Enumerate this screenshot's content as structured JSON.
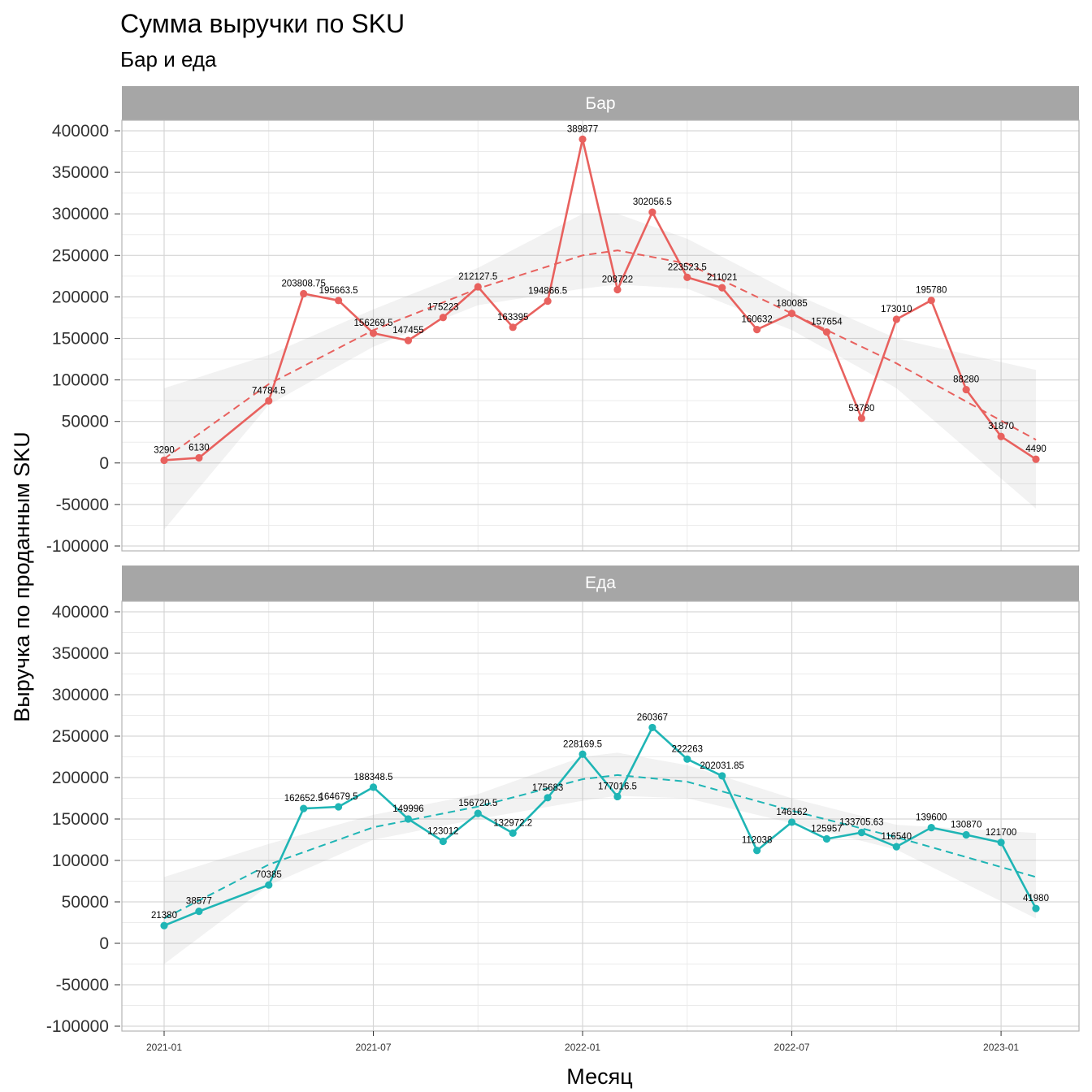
{
  "chart_data": {
    "type": "line",
    "title": "Сумма выручки по SKU",
    "subtitle": "Бар и еда",
    "xlabel": "Месяц",
    "ylabel": "Выручка по проданным SKU",
    "ylim": [
      -100000,
      400000
    ],
    "yticks": [
      -100000,
      -50000,
      0,
      50000,
      100000,
      150000,
      200000,
      250000,
      300000,
      350000,
      400000
    ],
    "xticks": [
      "2021-01",
      "2021-07",
      "2022-01",
      "2022-07",
      "2023-01"
    ],
    "grid": true,
    "legend": "none",
    "facets": [
      {
        "name": "Бар",
        "color": "#E8615E",
        "points": [
          {
            "x": "2021-01",
            "y": 3290,
            "label": "3290"
          },
          {
            "x": "2021-02",
            "y": 6130,
            "label": "6130"
          },
          {
            "x": "2021-04",
            "y": 74784.5,
            "label": "74784.5"
          },
          {
            "x": "2021-05",
            "y": 203808.75,
            "label": "203808.75"
          },
          {
            "x": "2021-06",
            "y": 195663.5,
            "label": "195663.5"
          },
          {
            "x": "2021-07",
            "y": 156269.5,
            "label": "156269.5"
          },
          {
            "x": "2021-08",
            "y": 147455,
            "label": "147455"
          },
          {
            "x": "2021-09",
            "y": 175223,
            "label": "175223"
          },
          {
            "x": "2021-10",
            "y": 212127.5,
            "label": "212127.5"
          },
          {
            "x": "2021-11",
            "y": 163395,
            "label": "163395"
          },
          {
            "x": "2021-12",
            "y": 194866.5,
            "label": "194866.5"
          },
          {
            "x": "2022-01",
            "y": 389877,
            "label": "389877"
          },
          {
            "x": "2022-02",
            "y": 208722,
            "label": "208722"
          },
          {
            "x": "2022-03",
            "y": 302056.5,
            "label": "302056.5"
          },
          {
            "x": "2022-04",
            "y": 223523.5,
            "label": "223523.5"
          },
          {
            "x": "2022-05",
            "y": 211021,
            "label": "211021"
          },
          {
            "x": "2022-06",
            "y": 160632,
            "label": "160632"
          },
          {
            "x": "2022-07",
            "y": 180085,
            "label": "180085"
          },
          {
            "x": "2022-08",
            "y": 157654,
            "label": "157654"
          },
          {
            "x": "2022-09",
            "y": 53780,
            "label": "53780"
          },
          {
            "x": "2022-10",
            "y": 173010,
            "label": "173010"
          },
          {
            "x": "2022-11",
            "y": 195780,
            "label": "195780"
          },
          {
            "x": "2022-12",
            "y": 88280,
            "label": "88280"
          },
          {
            "x": "2023-01",
            "y": 31870,
            "label": "31870"
          },
          {
            "x": "2023-02",
            "y": 4490,
            "label": "4490"
          }
        ],
        "trend": [
          {
            "x": "2021-01",
            "y": 5000,
            "lower": -80000,
            "upper": 90000
          },
          {
            "x": "2021-04",
            "y": 95000,
            "lower": 70000,
            "upper": 130000
          },
          {
            "x": "2021-07",
            "y": 160000,
            "lower": 140000,
            "upper": 185000
          },
          {
            "x": "2021-10",
            "y": 210000,
            "lower": 190000,
            "upper": 235000
          },
          {
            "x": "2022-01",
            "y": 250000,
            "lower": 210000,
            "upper": 300000
          },
          {
            "x": "2022-02",
            "y": 256000,
            "lower": 215000,
            "upper": 300000
          },
          {
            "x": "2022-04",
            "y": 240000,
            "lower": 210000,
            "upper": 270000
          },
          {
            "x": "2022-07",
            "y": 180000,
            "lower": 160000,
            "upper": 205000
          },
          {
            "x": "2022-10",
            "y": 120000,
            "lower": 90000,
            "upper": 150000
          },
          {
            "x": "2023-02",
            "y": 28000,
            "lower": -55000,
            "upper": 112000
          }
        ]
      },
      {
        "name": "Еда",
        "color": "#1FB5B5",
        "points": [
          {
            "x": "2021-01",
            "y": 21380,
            "label": "21380"
          },
          {
            "x": "2021-02",
            "y": 38577,
            "label": "38577"
          },
          {
            "x": "2021-04",
            "y": 70385,
            "label": "70385"
          },
          {
            "x": "2021-05",
            "y": 162652.5,
            "label": "162652.5"
          },
          {
            "x": "2021-06",
            "y": 164679.5,
            "label": "164679.5"
          },
          {
            "x": "2021-07",
            "y": 188348.5,
            "label": "188348.5"
          },
          {
            "x": "2021-08",
            "y": 149996,
            "label": "149996"
          },
          {
            "x": "2021-09",
            "y": 123012,
            "label": "123012"
          },
          {
            "x": "2021-10",
            "y": 156720.5,
            "label": "156720.5"
          },
          {
            "x": "2021-11",
            "y": 132972.2,
            "label": "132972.2"
          },
          {
            "x": "2021-12",
            "y": 175683,
            "label": "175683"
          },
          {
            "x": "2022-01",
            "y": 228169.5,
            "label": "228169.5"
          },
          {
            "x": "2022-02",
            "y": 177016.5,
            "label": "177016.5"
          },
          {
            "x": "2022-03",
            "y": 260367,
            "label": "260367"
          },
          {
            "x": "2022-04",
            "y": 222263,
            "label": "222263"
          },
          {
            "x": "2022-05",
            "y": 202031.85,
            "label": "202031.85"
          },
          {
            "x": "2022-06",
            "y": 112038,
            "label": "112038"
          },
          {
            "x": "2022-07",
            "y": 146162,
            "label": "146162"
          },
          {
            "x": "2022-08",
            "y": 125957,
            "label": "125957"
          },
          {
            "x": "2022-09",
            "y": 133705.63,
            "label": "133705.63"
          },
          {
            "x": "2022-10",
            "y": 116540,
            "label": "116540"
          },
          {
            "x": "2022-11",
            "y": 139600,
            "label": "139600"
          },
          {
            "x": "2022-12",
            "y": 130870,
            "label": "130870"
          },
          {
            "x": "2023-01",
            "y": 121700,
            "label": "121700"
          },
          {
            "x": "2023-02",
            "y": 41980,
            "label": "41980"
          }
        ],
        "trend": [
          {
            "x": "2021-01",
            "y": 30000,
            "lower": -25000,
            "upper": 80000
          },
          {
            "x": "2021-04",
            "y": 95000,
            "lower": 70000,
            "upper": 120000
          },
          {
            "x": "2021-07",
            "y": 140000,
            "lower": 125000,
            "upper": 155000
          },
          {
            "x": "2021-10",
            "y": 165000,
            "lower": 150000,
            "upper": 180000
          },
          {
            "x": "2022-01",
            "y": 198000,
            "lower": 172000,
            "upper": 225000
          },
          {
            "x": "2022-02",
            "y": 203000,
            "lower": 178000,
            "upper": 230000
          },
          {
            "x": "2022-04",
            "y": 195000,
            "lower": 175000,
            "upper": 215000
          },
          {
            "x": "2022-07",
            "y": 160000,
            "lower": 145000,
            "upper": 175000
          },
          {
            "x": "2022-10",
            "y": 128000,
            "lower": 113000,
            "upper": 143000
          },
          {
            "x": "2023-02",
            "y": 80000,
            "lower": 30000,
            "upper": 133000
          }
        ]
      }
    ]
  }
}
